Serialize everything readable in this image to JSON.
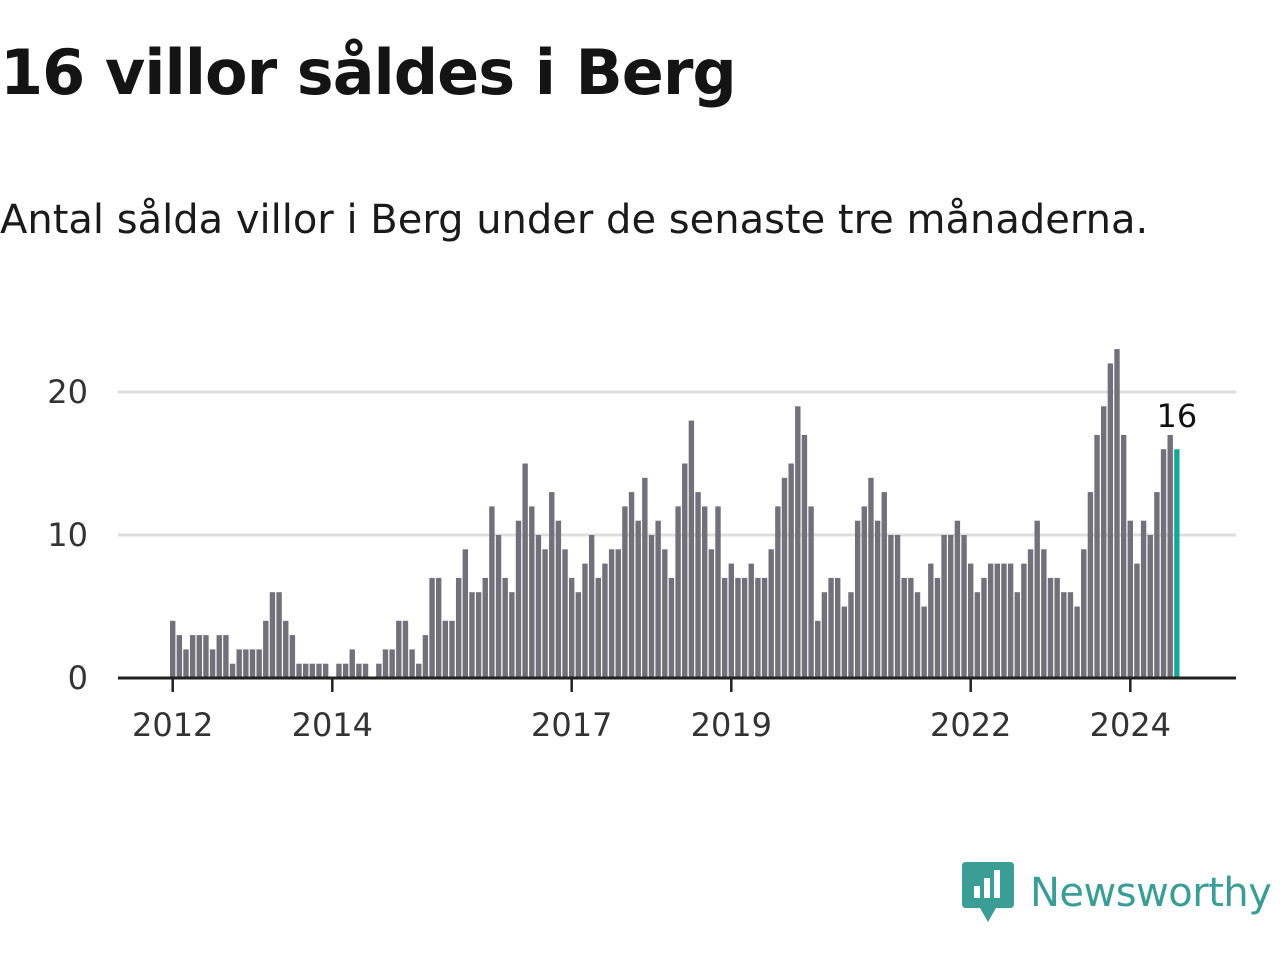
{
  "title": "16 villor såldes i Berg",
  "subtitle": "Antal sålda villor i Berg under de senaste tre månaderna.",
  "brand": {
    "name": "Newsworthy",
    "icon": "newsworthy-logo-icon",
    "color": "#3a9e96"
  },
  "colors": {
    "bar": "#72707a",
    "highlight": "#1aa698",
    "grid": "#dddddd",
    "axis": "#222222"
  },
  "chart_data": {
    "type": "bar",
    "title": "16 villor såldes i Berg",
    "subtitle": "Antal sålda villor i Berg under de senaste tre månaderna.",
    "xlabel": "",
    "ylabel": "",
    "grid": true,
    "ylim": [
      0,
      23
    ],
    "y_ticks": [
      0,
      10,
      20
    ],
    "x_tick_labels": [
      "2012",
      "2014",
      "2017",
      "2019",
      "2022",
      "2024"
    ],
    "x_ticks": [
      {
        "label": "2012",
        "index": 0
      },
      {
        "label": "2014",
        "index": 24
      },
      {
        "label": "2017",
        "index": 60
      },
      {
        "label": "2019",
        "index": 84
      },
      {
        "label": "2022",
        "index": 120
      },
      {
        "label": "2024",
        "index": 144
      }
    ],
    "values": [
      4,
      3,
      2,
      3,
      3,
      3,
      2,
      3,
      3,
      1,
      2,
      2,
      2,
      2,
      4,
      6,
      6,
      4,
      3,
      1,
      1,
      1,
      1,
      1,
      0,
      1,
      1,
      2,
      1,
      1,
      0,
      1,
      2,
      2,
      4,
      4,
      2,
      1,
      3,
      7,
      7,
      4,
      4,
      7,
      9,
      6,
      6,
      7,
      12,
      10,
      7,
      6,
      11,
      15,
      12,
      10,
      9,
      13,
      11,
      9,
      7,
      6,
      8,
      10,
      7,
      8,
      9,
      9,
      12,
      13,
      11,
      14,
      10,
      11,
      9,
      7,
      12,
      15,
      18,
      13,
      12,
      9,
      12,
      7,
      8,
      7,
      7,
      8,
      7,
      7,
      9,
      12,
      14,
      15,
      19,
      17,
      12,
      4,
      6,
      7,
      7,
      5,
      6,
      11,
      12,
      14,
      11,
      13,
      10,
      10,
      7,
      7,
      6,
      5,
      8,
      7,
      10,
      10,
      11,
      10,
      8,
      6,
      7,
      8,
      8,
      8,
      8,
      6,
      8,
      9,
      11,
      9,
      7,
      7,
      6,
      6,
      5,
      9,
      13,
      17,
      19,
      22,
      23,
      17,
      11,
      8,
      11,
      10,
      13,
      16,
      17,
      16
    ],
    "highlight_label": "16"
  }
}
